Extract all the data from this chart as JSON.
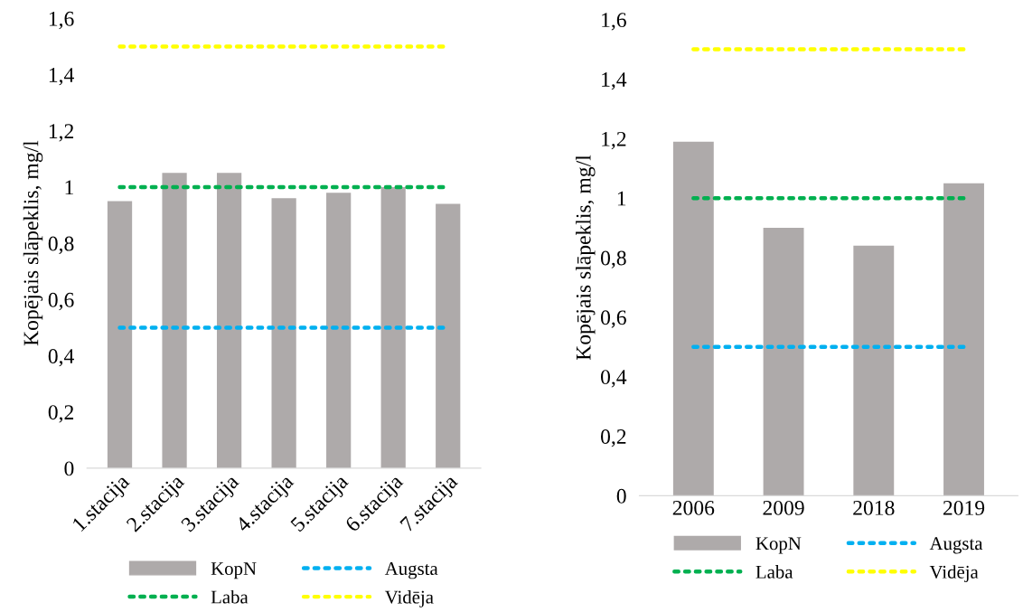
{
  "chart_data": [
    {
      "type": "bar",
      "ylabel": "Kopējais slāpeklis, mg/l",
      "categories": [
        "1.stacija",
        "2.stacija",
        "3.stacija",
        "4.stacija",
        "5.stacija",
        "6.stacija",
        "7.stacija"
      ],
      "series": [
        {
          "name": "KopN",
          "color": "#aeaaaa",
          "values": [
            0.95,
            1.05,
            1.05,
            0.96,
            0.98,
            1.0,
            0.94
          ]
        },
        {
          "name": "Augsta",
          "type": "line",
          "line_style": "dotted",
          "color": "#00b0f0",
          "values": [
            0.5,
            0.5,
            0.5,
            0.5,
            0.5,
            0.5,
            0.5
          ]
        },
        {
          "name": "Laba",
          "type": "line",
          "line_style": "dotted",
          "color": "#00b050",
          "values": [
            1.0,
            1.0,
            1.0,
            1.0,
            1.0,
            1.0,
            1.0
          ]
        },
        {
          "name": "Vidēja",
          "type": "line",
          "line_style": "dotted",
          "color": "#ffff00",
          "values": [
            1.5,
            1.5,
            1.5,
            1.5,
            1.5,
            1.5,
            1.5
          ]
        }
      ],
      "ylim": [
        0,
        1.6
      ],
      "yticks": [
        {
          "value": 0,
          "label": "0"
        },
        {
          "value": 0.2,
          "label": "0,2"
        },
        {
          "value": 0.4,
          "label": "0,4"
        },
        {
          "value": 0.6,
          "label": "0,6"
        },
        {
          "value": 0.8,
          "label": "0,8"
        },
        {
          "value": 1,
          "label": "1"
        },
        {
          "value": 1.2,
          "label": "1,2"
        },
        {
          "value": 1.4,
          "label": "1,4"
        },
        {
          "value": 1.6,
          "label": "1,6"
        }
      ],
      "grid": false,
      "legend": "bottom"
    },
    {
      "type": "bar",
      "ylabel": "Kopējais slāpeklis, mg/l",
      "categories": [
        "2006",
        "2009",
        "2018",
        "2019"
      ],
      "series": [
        {
          "name": "KopN",
          "color": "#aeaaaa",
          "values": [
            1.19,
            0.9,
            0.84,
            1.05
          ]
        },
        {
          "name": "Augsta",
          "type": "line",
          "line_style": "dotted",
          "color": "#00b0f0",
          "values": [
            0.5,
            0.5,
            0.5,
            0.5
          ]
        },
        {
          "name": "Laba",
          "type": "line",
          "line_style": "dotted",
          "color": "#00b050",
          "values": [
            1.0,
            1.0,
            1.0,
            1.0
          ]
        },
        {
          "name": "Vidēja",
          "type": "line",
          "line_style": "dotted",
          "color": "#ffff00",
          "values": [
            1.5,
            1.5,
            1.5,
            1.5
          ]
        }
      ],
      "ylim": [
        0,
        1.6
      ],
      "yticks": [
        {
          "value": 0,
          "label": "0"
        },
        {
          "value": 0.2,
          "label": "0,2"
        },
        {
          "value": 0.4,
          "label": "0,4"
        },
        {
          "value": 0.6,
          "label": "0,6"
        },
        {
          "value": 0.8,
          "label": "0,8"
        },
        {
          "value": 1,
          "label": "1"
        },
        {
          "value": 1.2,
          "label": "1,2"
        },
        {
          "value": 1.4,
          "label": "1,4"
        },
        {
          "value": 1.6,
          "label": "1,6"
        }
      ],
      "grid": false,
      "legend": "bottom"
    }
  ]
}
